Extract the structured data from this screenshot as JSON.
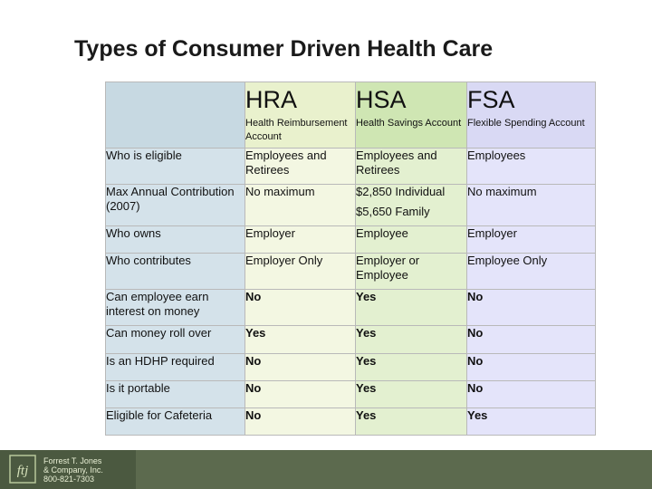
{
  "title": "Types of Consumer Driven Health Care",
  "plans": [
    {
      "name": "HRA",
      "full": "Health Reimbursement Account"
    },
    {
      "name": "HSA",
      "full": "Health Savings Account"
    },
    {
      "name": "FSA",
      "full": "Flexible Spending Account"
    }
  ],
  "rows": [
    {
      "label": "Who is eligible",
      "hra": "Employees and Retirees",
      "hsa": "Employees and Retirees",
      "fsa": "Employees"
    },
    {
      "label": "Max Annual Contribution (2007)",
      "hra": "No maximum",
      "hsa": "$2,850 Individual",
      "hsa2": "$5,650 Family",
      "fsa": "No maximum"
    },
    {
      "label": "Who owns",
      "hra": "Employer",
      "hsa": "Employee",
      "fsa": "Employer"
    },
    {
      "label": "Who contributes",
      "hra": "Employer Only",
      "hsa": "Employer or Employee",
      "fsa": "Employee Only"
    },
    {
      "label": "Can employee earn interest on money",
      "hra": "No",
      "hsa": "Yes",
      "fsa": "No"
    },
    {
      "label": "Can money roll over",
      "hra": "Yes",
      "hsa": "Yes",
      "fsa": "No"
    },
    {
      "label": "Is an HDHP required",
      "hra": "No",
      "hsa": "Yes",
      "fsa": "No"
    },
    {
      "label": "Is it portable",
      "hra": "No",
      "hsa": "Yes",
      "fsa": "No"
    },
    {
      "label": "Eligible for Cafeteria",
      "hra": "No",
      "hsa": "Yes",
      "fsa": "Yes"
    }
  ],
  "footer": {
    "firm_line1": "Forrest T. Jones",
    "firm_line2": "& Company, Inc.",
    "firm_phone": "800-821-7303",
    "logo_text": "ftj"
  }
}
